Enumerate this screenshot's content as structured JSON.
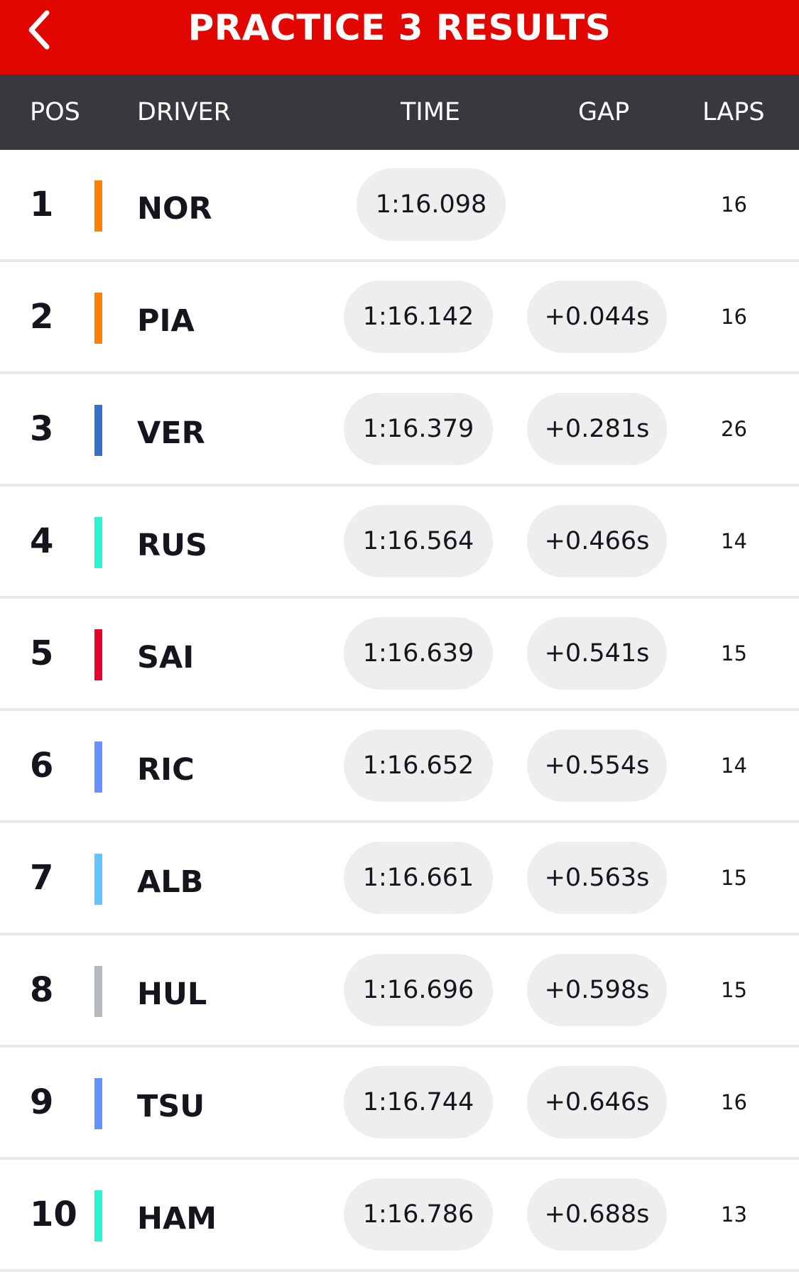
{
  "header": {
    "title": "PRACTICE 3 RESULTS",
    "back_icon": "chevron-left-icon"
  },
  "columns": {
    "pos": "POS",
    "driver": "DRIVER",
    "time": "TIME",
    "gap": "GAP",
    "laps": "LAPS"
  },
  "results": [
    {
      "pos": "1",
      "driver": "NOR",
      "time": "1:16.098",
      "gap": "",
      "laps": "16",
      "team_color": "#ff8000"
    },
    {
      "pos": "2",
      "driver": "PIA",
      "time": "1:16.142",
      "gap": "+0.044s",
      "laps": "16",
      "team_color": "#ff8000"
    },
    {
      "pos": "3",
      "driver": "VER",
      "time": "1:16.379",
      "gap": "+0.281s",
      "laps": "26",
      "team_color": "#3671c6"
    },
    {
      "pos": "4",
      "driver": "RUS",
      "time": "1:16.564",
      "gap": "+0.466s",
      "laps": "14",
      "team_color": "#27f4d2"
    },
    {
      "pos": "5",
      "driver": "SAI",
      "time": "1:16.639",
      "gap": "+0.541s",
      "laps": "15",
      "team_color": "#e8002d"
    },
    {
      "pos": "6",
      "driver": "RIC",
      "time": "1:16.652",
      "gap": "+0.554s",
      "laps": "14",
      "team_color": "#6692ff"
    },
    {
      "pos": "7",
      "driver": "ALB",
      "time": "1:16.661",
      "gap": "+0.563s",
      "laps": "15",
      "team_color": "#64c4ff"
    },
    {
      "pos": "8",
      "driver": "HUL",
      "time": "1:16.696",
      "gap": "+0.598s",
      "laps": "15",
      "team_color": "#b6babd"
    },
    {
      "pos": "9",
      "driver": "TSU",
      "time": "1:16.744",
      "gap": "+0.646s",
      "laps": "16",
      "team_color": "#6692ff"
    },
    {
      "pos": "10",
      "driver": "HAM",
      "time": "1:16.786",
      "gap": "+0.688s",
      "laps": "13",
      "team_color": "#27f4d2"
    }
  ]
}
